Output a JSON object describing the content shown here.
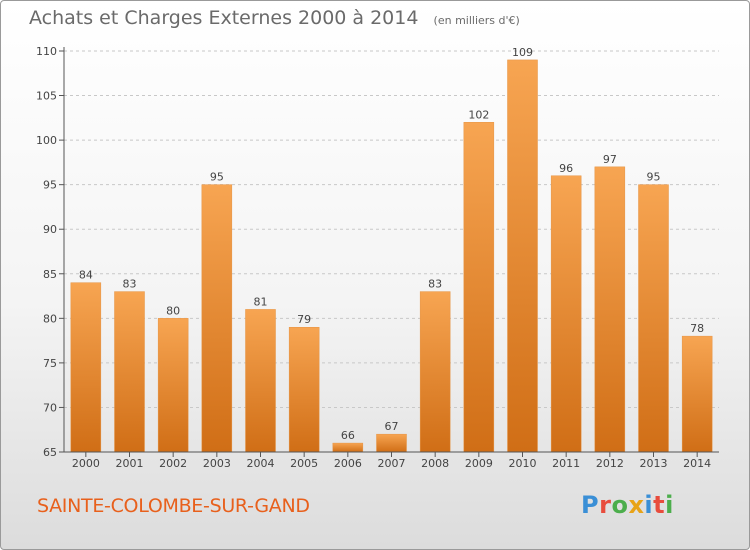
{
  "header": {
    "title": "Achats et Charges Externes 2000 à 2014",
    "unit": "(en milliers d'€)"
  },
  "footer": {
    "city": "SAINTE-COLOMBE-SUR-GAND",
    "logo_text": "Proxiti"
  },
  "colors": {
    "bar_top": "#f7a552",
    "bar_bottom": "#d06e16",
    "axis": "#555555",
    "grid": "#c8c8c8",
    "city": "#e8601c"
  },
  "chart_data": {
    "type": "bar",
    "title": "Achats et Charges Externes 2000 à 2014",
    "subtitle": "(en milliers d'€)",
    "xlabel": "",
    "ylabel": "",
    "categories": [
      "2000",
      "2001",
      "2002",
      "2003",
      "2004",
      "2005",
      "2006",
      "2007",
      "2008",
      "2009",
      "2010",
      "2011",
      "2012",
      "2013",
      "2014"
    ],
    "values": [
      84,
      83,
      80,
      95,
      81,
      79,
      66,
      67,
      83,
      102,
      109,
      96,
      97,
      95,
      78
    ],
    "ylim": [
      65,
      110
    ],
    "yticks": [
      65,
      70,
      75,
      80,
      85,
      90,
      95,
      100,
      105,
      110
    ],
    "grid": true,
    "legend": "none"
  }
}
